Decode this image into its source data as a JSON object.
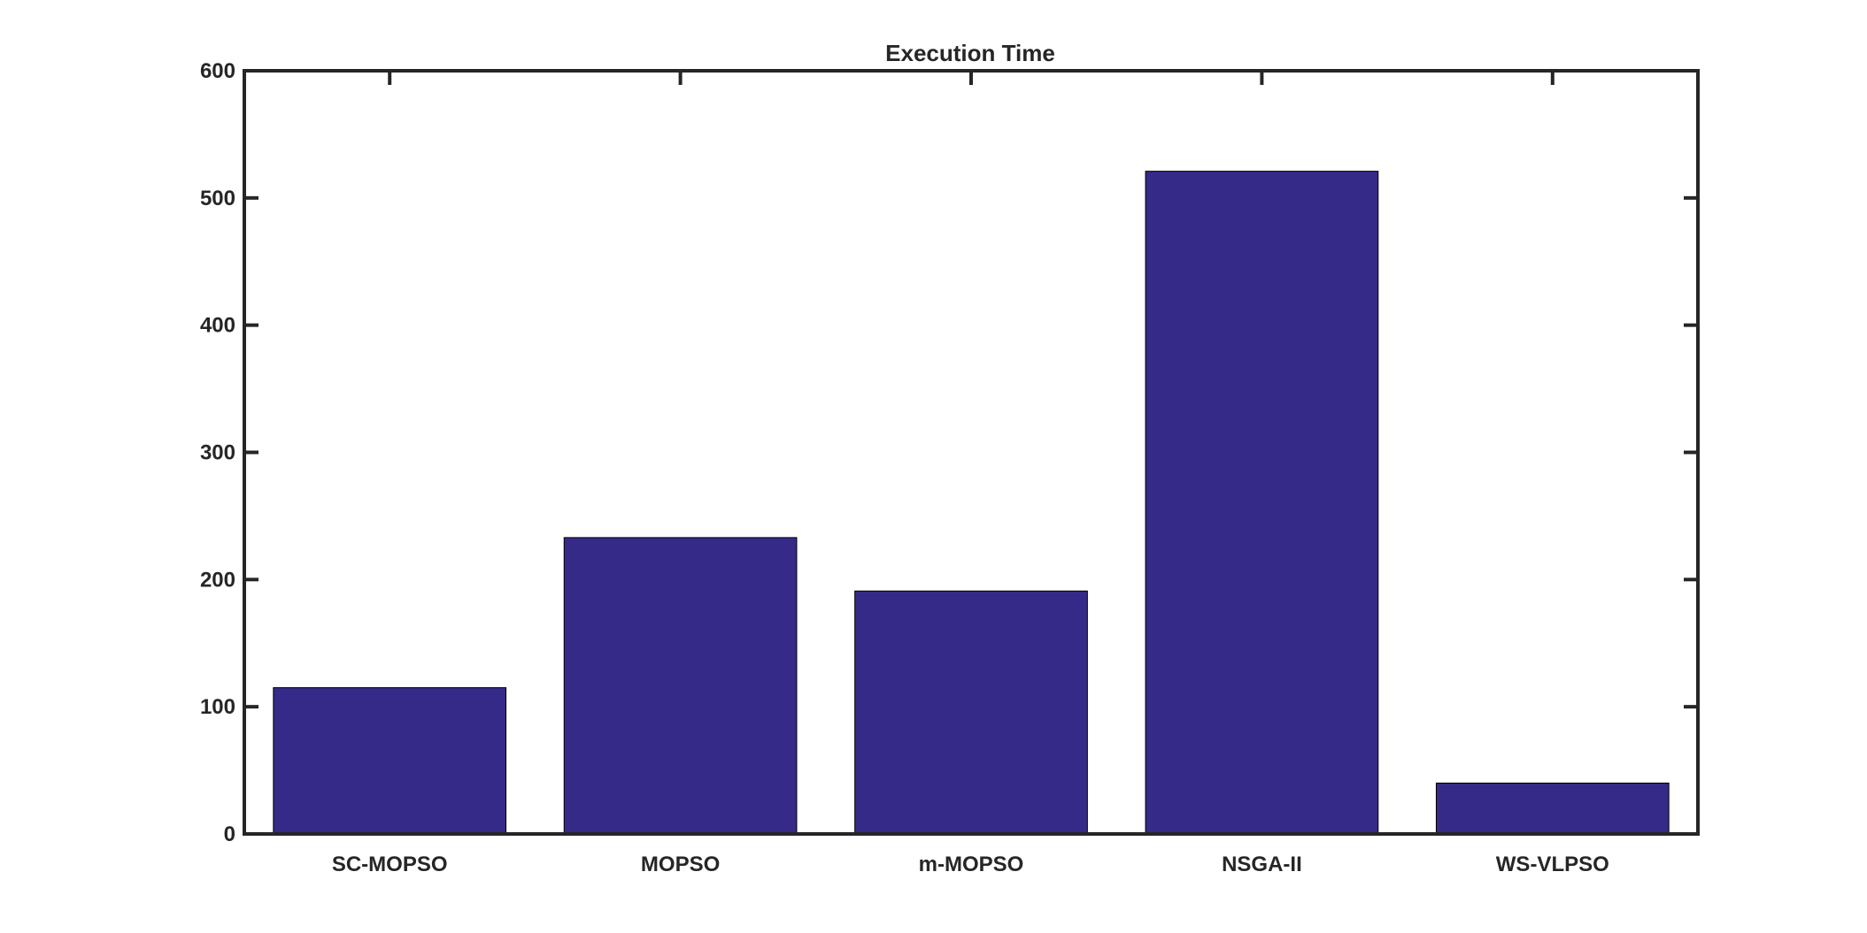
{
  "chart_data": {
    "type": "bar",
    "title": "Execution Time",
    "xlabel": "",
    "ylabel": "",
    "categories": [
      "SC-MOPSO",
      "MOPSO",
      "m-MOPSO",
      "NSGA-II",
      "WS-VLPSO"
    ],
    "values": [
      115,
      233,
      191,
      521,
      40
    ],
    "ylim": [
      0,
      600
    ],
    "yticks": [
      "0",
      "100",
      "200",
      "300",
      "400",
      "500",
      "600"
    ],
    "grid": false,
    "legend": "none",
    "bar_color": "#352a87",
    "axis_color": "#262626"
  }
}
